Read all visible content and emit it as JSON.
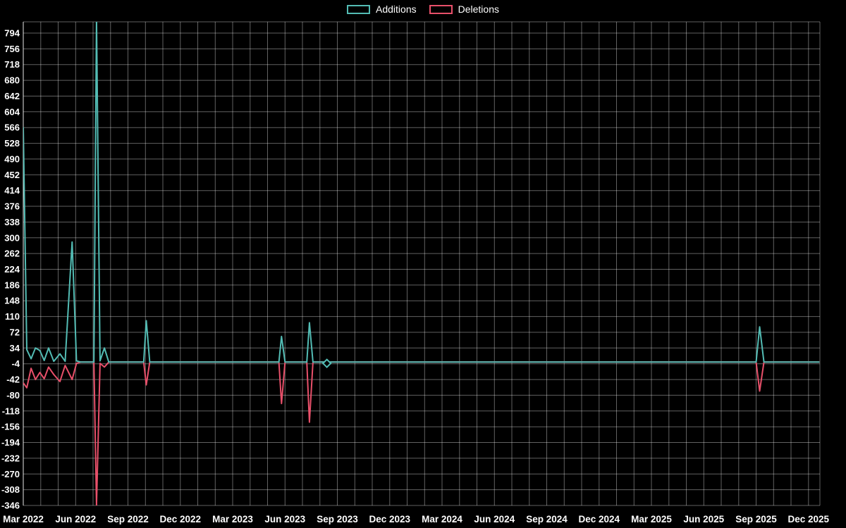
{
  "legend": {
    "additions_label": "Additions",
    "deletions_label": "Deletions"
  },
  "colors": {
    "background": "#000000",
    "grid": "#ffffff",
    "text": "#ffffff",
    "additions": "#53bcb4",
    "deletions": "#e8506a"
  },
  "chart_data": {
    "type": "line",
    "title": "",
    "xlabel": "",
    "ylabel": "",
    "grid": true,
    "legend_position": "top-center",
    "background": "#000000",
    "x_unit": "months since Mar 2022",
    "xlim": [
      0,
      45.6
    ],
    "ylim": [
      -346,
      818
    ],
    "x_tick_months": [
      0,
      3,
      6,
      9,
      12,
      15,
      18,
      21,
      24,
      27,
      30,
      33,
      36,
      39,
      42,
      45
    ],
    "x_tick_labels": [
      "Mar 2022",
      "Jun 2022",
      "Sep 2022",
      "Dec 2022",
      "Mar 2023",
      "Jun 2023",
      "Sep 2023",
      "Dec 2023",
      "Mar 2024",
      "Jun 2024",
      "Sep 2024",
      "Dec 2024",
      "Mar 2025",
      "Jun 2025",
      "Sep 2025",
      "Dec 2025"
    ],
    "y_ticks": [
      794,
      756,
      718,
      680,
      642,
      604,
      566,
      528,
      490,
      452,
      414,
      376,
      338,
      300,
      262,
      224,
      186,
      148,
      110,
      72,
      34,
      -4,
      -42,
      -80,
      -118,
      -156,
      -194,
      -232,
      -270,
      -308,
      -346
    ],
    "series": [
      {
        "name": "Additions",
        "color": "#53bcb4",
        "points": [
          [
            0,
            566
          ],
          [
            0.2,
            30
          ],
          [
            0.45,
            8
          ],
          [
            0.7,
            34
          ],
          [
            0.95,
            28
          ],
          [
            1.2,
            4
          ],
          [
            1.45,
            34
          ],
          [
            1.75,
            2
          ],
          [
            2.1,
            20
          ],
          [
            2.4,
            2
          ],
          [
            2.8,
            290
          ],
          [
            3.05,
            3
          ],
          [
            3.3,
            0
          ],
          [
            4.05,
            0
          ],
          [
            4.2,
            830
          ],
          [
            4.4,
            3
          ],
          [
            4.65,
            34
          ],
          [
            4.9,
            0
          ],
          [
            6.9,
            0
          ],
          [
            7.05,
            100
          ],
          [
            7.25,
            0
          ],
          [
            14.65,
            0
          ],
          [
            14.8,
            62
          ],
          [
            15.0,
            0
          ],
          [
            16.25,
            0
          ],
          [
            16.4,
            95
          ],
          [
            16.6,
            0
          ],
          [
            42.0,
            0
          ],
          [
            42.2,
            85
          ],
          [
            42.45,
            0
          ],
          [
            45.6,
            0
          ]
        ]
      },
      {
        "name": "Deletions",
        "color": "#e8506a",
        "points": [
          [
            0,
            -50
          ],
          [
            0.2,
            -62
          ],
          [
            0.45,
            -15
          ],
          [
            0.7,
            -42
          ],
          [
            0.95,
            -25
          ],
          [
            1.2,
            -40
          ],
          [
            1.45,
            -12
          ],
          [
            1.75,
            -30
          ],
          [
            2.1,
            -47
          ],
          [
            2.4,
            -8
          ],
          [
            2.8,
            -42
          ],
          [
            3.05,
            -3
          ],
          [
            3.3,
            0
          ],
          [
            4.05,
            0
          ],
          [
            4.2,
            -346
          ],
          [
            4.4,
            -3
          ],
          [
            4.65,
            -12
          ],
          [
            4.9,
            0
          ],
          [
            6.9,
            0
          ],
          [
            7.05,
            -55
          ],
          [
            7.25,
            0
          ],
          [
            14.65,
            0
          ],
          [
            14.8,
            -100
          ],
          [
            15.0,
            0
          ],
          [
            16.25,
            0
          ],
          [
            16.4,
            -145
          ],
          [
            16.6,
            0
          ],
          [
            42.0,
            0
          ],
          [
            42.2,
            -70
          ],
          [
            42.45,
            0
          ],
          [
            45.6,
            0
          ]
        ]
      }
    ],
    "markers": [
      {
        "series": "Additions",
        "x": 17.4,
        "y": -3,
        "shape": "diamond"
      }
    ]
  }
}
